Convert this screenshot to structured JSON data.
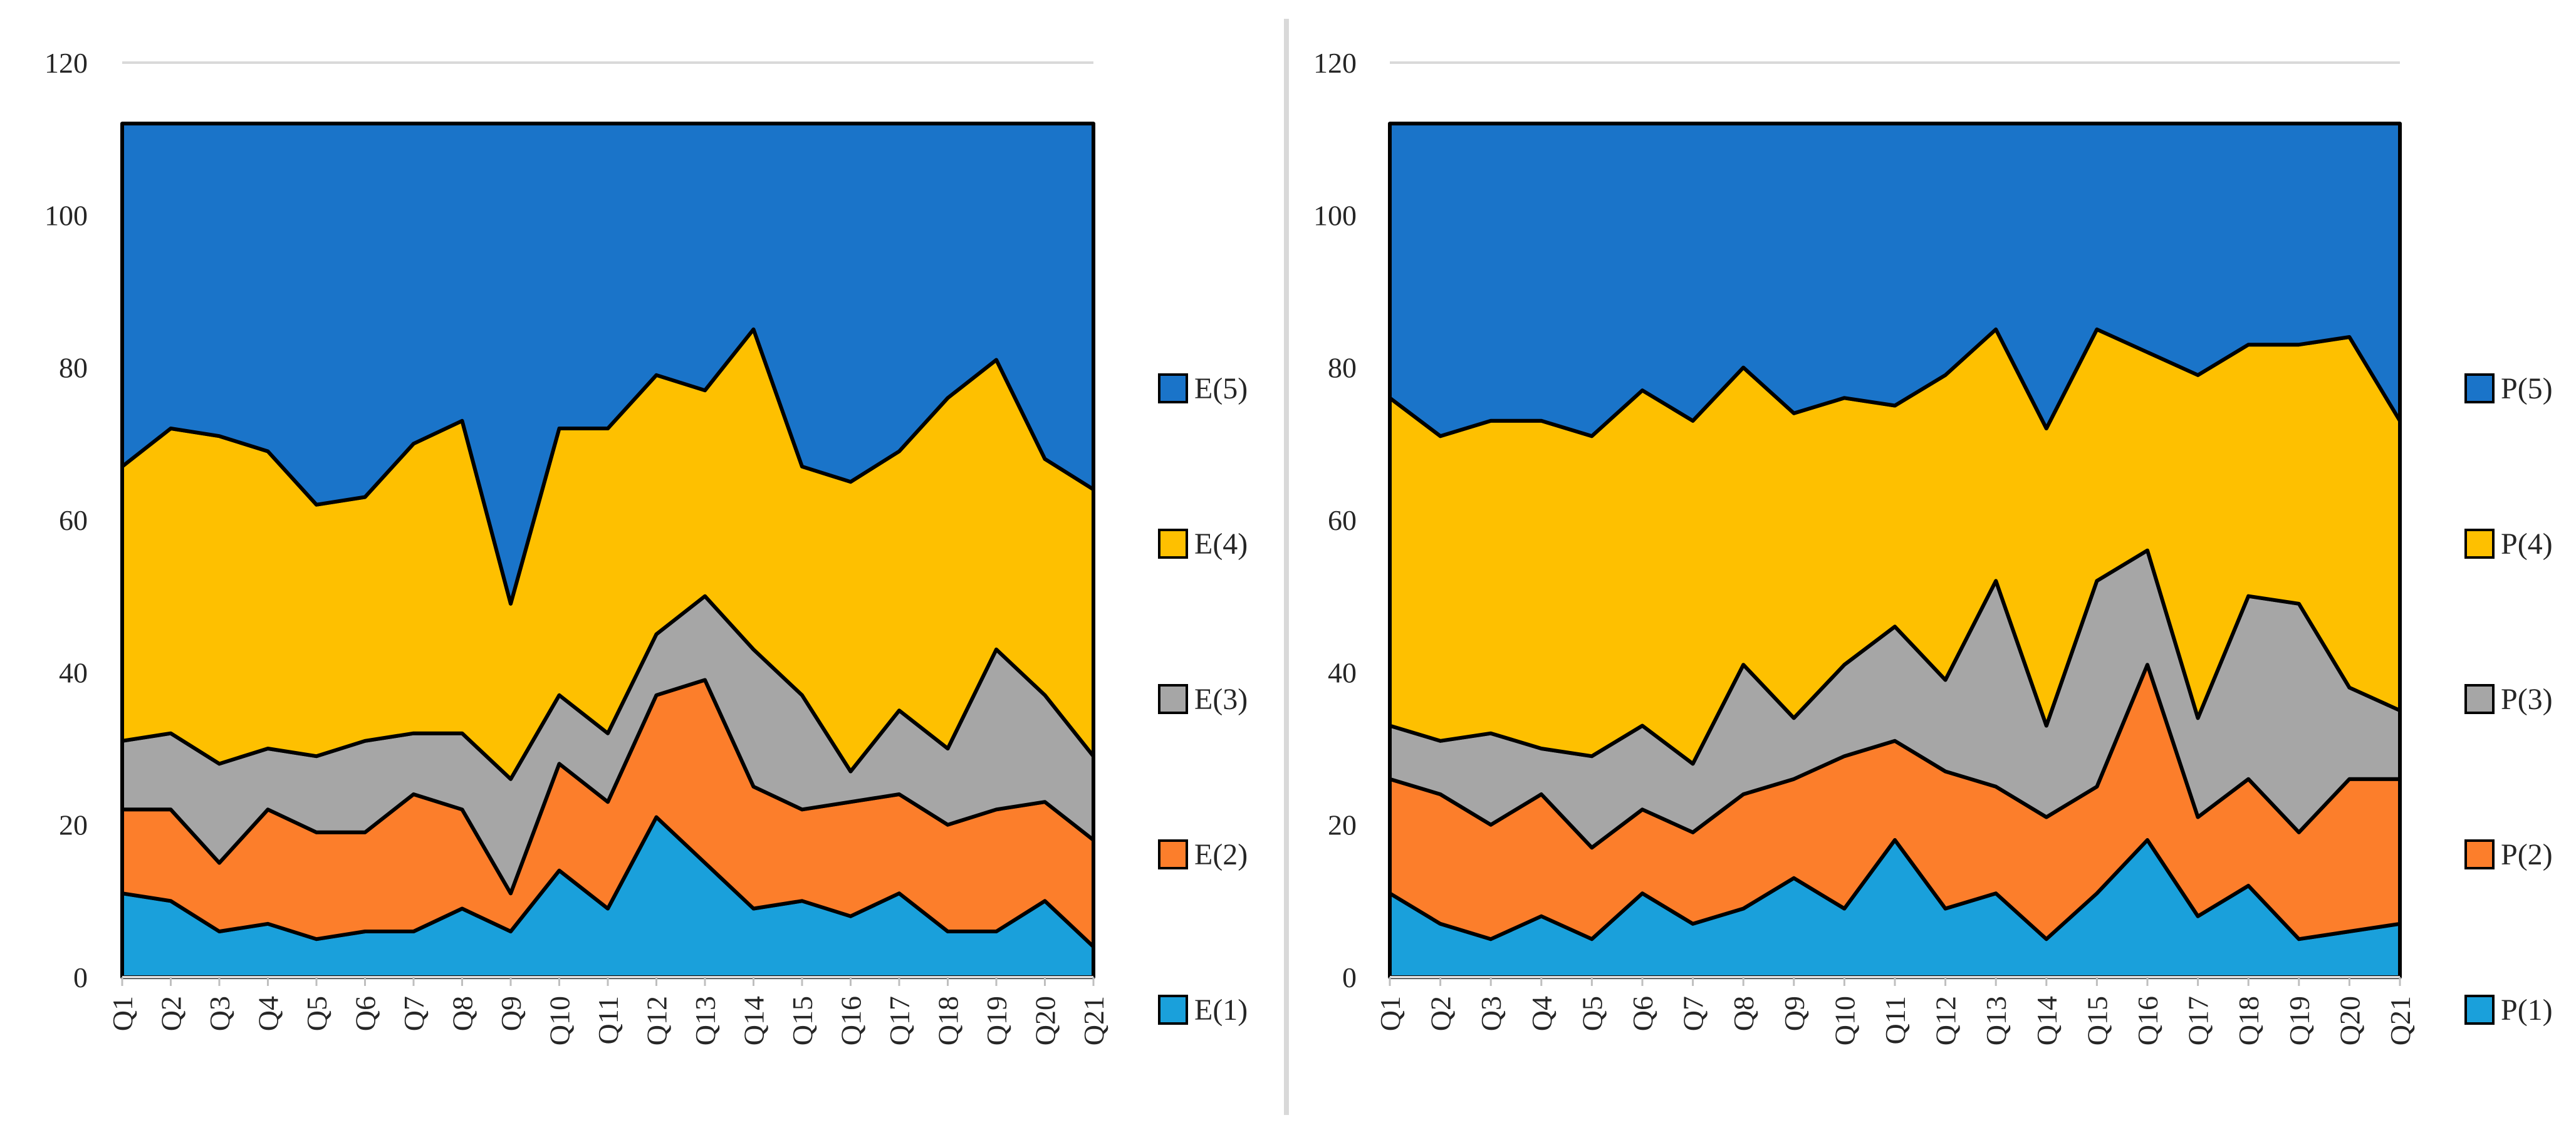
{
  "chart_data": [
    {
      "type": "area",
      "stacked": true,
      "title": "",
      "xlabel": "",
      "ylabel": "",
      "ylim": [
        0,
        120
      ],
      "ytick_step": 20,
      "grid": "horizontal",
      "legend_position": "right",
      "categories": [
        "Q1",
        "Q2",
        "Q3",
        "Q4",
        "Q5",
        "Q6",
        "Q7",
        "Q8",
        "Q9",
        "Q10",
        "Q11",
        "Q12",
        "Q13",
        "Q14",
        "Q15",
        "Q16",
        "Q17",
        "Q18",
        "Q19",
        "Q20",
        "Q21"
      ],
      "series": [
        {
          "name": "E(1)",
          "color": "#1aa0db",
          "values": [
            11,
            10,
            6,
            7,
            5,
            6,
            6,
            9,
            6,
            14,
            9,
            21,
            15,
            9,
            10,
            8,
            11,
            6,
            6,
            10,
            4
          ]
        },
        {
          "name": "E(2)",
          "color": "#fc7e2b",
          "values": [
            11,
            12,
            9,
            15,
            14,
            13,
            18,
            13,
            5,
            14,
            14,
            16,
            24,
            16,
            12,
            15,
            13,
            14,
            16,
            13,
            14
          ]
        },
        {
          "name": "E(3)",
          "color": "#a6a6a6",
          "values": [
            9,
            10,
            13,
            8,
            10,
            12,
            8,
            10,
            15,
            9,
            9,
            8,
            11,
            18,
            15,
            4,
            11,
            10,
            21,
            14,
            11
          ]
        },
        {
          "name": "E(4)",
          "color": "#fec000",
          "values": [
            36,
            40,
            43,
            39,
            33,
            32,
            38,
            41,
            23,
            35,
            40,
            34,
            27,
            42,
            30,
            38,
            34,
            46,
            38,
            31,
            35
          ]
        },
        {
          "name": "E(5)",
          "color": "#1a74c9",
          "values": [
            45,
            40,
            41,
            43,
            50,
            49,
            42,
            39,
            63,
            40,
            40,
            33,
            35,
            27,
            45,
            47,
            43,
            36,
            31,
            44,
            48
          ]
        }
      ]
    },
    {
      "type": "area",
      "stacked": true,
      "title": "",
      "xlabel": "",
      "ylabel": "",
      "ylim": [
        0,
        120
      ],
      "ytick_step": 20,
      "grid": "horizontal",
      "legend_position": "right",
      "categories": [
        "Q1",
        "Q2",
        "Q3",
        "Q4",
        "Q5",
        "Q6",
        "Q7",
        "Q8",
        "Q9",
        "Q10",
        "Q11",
        "Q12",
        "Q13",
        "Q14",
        "Q15",
        "Q16",
        "Q17",
        "Q18",
        "Q19",
        "Q20",
        "Q21"
      ],
      "series": [
        {
          "name": "P(1)",
          "color": "#1aa0db",
          "values": [
            11,
            7,
            5,
            8,
            5,
            11,
            7,
            9,
            13,
            9,
            18,
            9,
            11,
            5,
            11,
            18,
            8,
            12,
            5,
            6,
            7
          ]
        },
        {
          "name": "P(2)",
          "color": "#fc7e2b",
          "values": [
            15,
            17,
            15,
            16,
            12,
            11,
            12,
            15,
            13,
            20,
            13,
            18,
            14,
            16,
            14,
            23,
            13,
            14,
            14,
            20,
            19
          ]
        },
        {
          "name": "P(3)",
          "color": "#a6a6a6",
          "values": [
            7,
            7,
            12,
            6,
            12,
            11,
            9,
            17,
            8,
            12,
            15,
            12,
            27,
            12,
            27,
            15,
            13,
            24,
            30,
            12,
            9
          ]
        },
        {
          "name": "P(4)",
          "color": "#fec000",
          "values": [
            43,
            40,
            41,
            43,
            42,
            44,
            45,
            39,
            40,
            35,
            29,
            40,
            33,
            39,
            33,
            26,
            45,
            33,
            34,
            46,
            38
          ]
        },
        {
          "name": "P(5)",
          "color": "#1a74c9",
          "values": [
            36,
            41,
            39,
            39,
            41,
            35,
            39,
            32,
            38,
            36,
            37,
            33,
            27,
            40,
            27,
            30,
            33,
            29,
            29,
            28,
            39
          ]
        }
      ]
    }
  ]
}
